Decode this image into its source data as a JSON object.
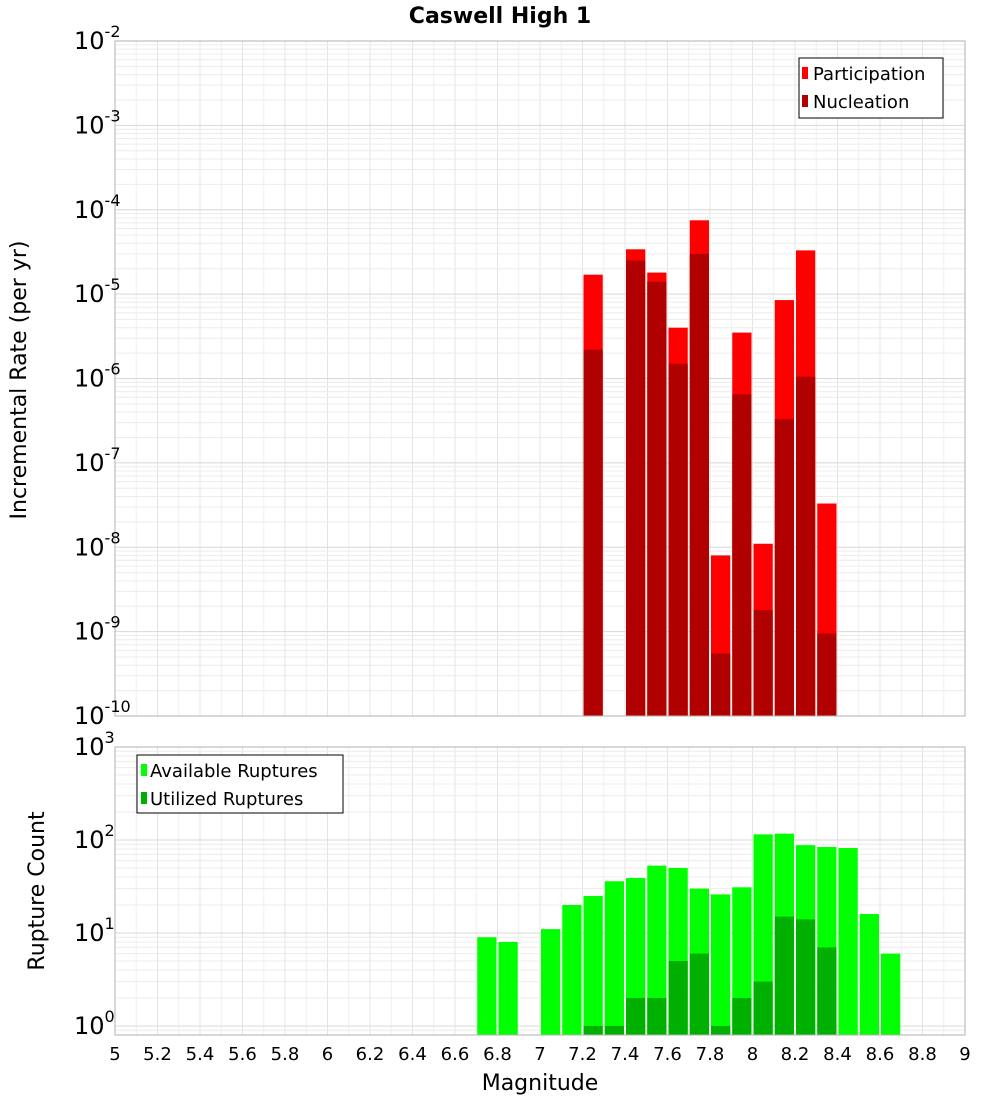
{
  "chart_data": [
    {
      "type": "bar",
      "title": "Caswell High 1",
      "ylabel": "Incremental Rate (per yr)",
      "xlim": [
        5,
        9
      ],
      "ylim": [
        1e-10,
        0.01
      ],
      "yscale": "log",
      "legend_position": "top-right",
      "x": [
        7.25,
        7.35,
        7.45,
        7.55,
        7.65,
        7.75,
        7.85,
        7.95,
        8.05,
        8.15,
        8.25,
        8.35
      ],
      "series": [
        {
          "name": "Participation",
          "color": "#ff0000",
          "values": [
            1.7e-05,
            null,
            3.4e-05,
            1.8e-05,
            4e-06,
            7.5e-05,
            8e-09,
            3.5e-06,
            1.1e-08,
            8.5e-06,
            3.3e-05,
            3.3e-08
          ]
        },
        {
          "name": "Nucleation",
          "color": "#b00000",
          "values": [
            2.2e-06,
            null,
            2.5e-05,
            1.4e-05,
            1.5e-06,
            3e-05,
            5.5e-10,
            6.5e-07,
            1.8e-09,
            3.3e-07,
            1.05e-06,
            9.5e-10
          ]
        }
      ],
      "y_ticks": [
        {
          "base": "10",
          "exp": "-2"
        },
        {
          "base": "10",
          "exp": "-3"
        },
        {
          "base": "10",
          "exp": "-4"
        },
        {
          "base": "10",
          "exp": "-5"
        },
        {
          "base": "10",
          "exp": "-6"
        },
        {
          "base": "10",
          "exp": "-7"
        },
        {
          "base": "10",
          "exp": "-8"
        },
        {
          "base": "10",
          "exp": "-9"
        },
        {
          "base": "10",
          "exp": "-10"
        }
      ]
    },
    {
      "type": "bar",
      "xlabel": "Magnitude",
      "ylabel": "Rupture Count",
      "xlim": [
        5,
        9
      ],
      "ylim": [
        0.8,
        1000
      ],
      "yscale": "log",
      "legend_position": "top-left",
      "x": [
        6.75,
        6.85,
        6.95,
        7.05,
        7.15,
        7.25,
        7.35,
        7.45,
        7.55,
        7.65,
        7.75,
        7.85,
        7.95,
        8.05,
        8.15,
        8.25,
        8.35,
        8.45,
        8.55,
        8.65
      ],
      "series": [
        {
          "name": "Available Ruptures",
          "color": "#00ff00",
          "values": [
            9,
            8,
            null,
            11,
            20,
            25,
            36,
            39,
            53,
            50,
            30,
            26,
            31,
            115,
            117,
            88,
            84,
            82,
            16,
            6
          ]
        },
        {
          "name": "Utilized Ruptures",
          "color": "#00b000",
          "values": [
            null,
            null,
            null,
            null,
            null,
            1,
            1,
            2,
            2,
            5,
            6,
            1,
            2,
            3,
            15,
            14,
            7,
            null,
            null,
            null
          ]
        }
      ],
      "y_ticks": [
        {
          "base": "10",
          "exp": "3"
        },
        {
          "base": "10",
          "exp": "2"
        },
        {
          "base": "10",
          "exp": "1"
        },
        {
          "base": "10",
          "exp": "0"
        }
      ],
      "x_ticks": [
        "5",
        "5.2",
        "5.4",
        "5.6",
        "5.8",
        "6",
        "6.2",
        "6.4",
        "6.6",
        "6.8",
        "7",
        "7.2",
        "7.4",
        "7.6",
        "7.8",
        "8",
        "8.2",
        "8.4",
        "8.6",
        "8.8",
        "9"
      ]
    }
  ]
}
